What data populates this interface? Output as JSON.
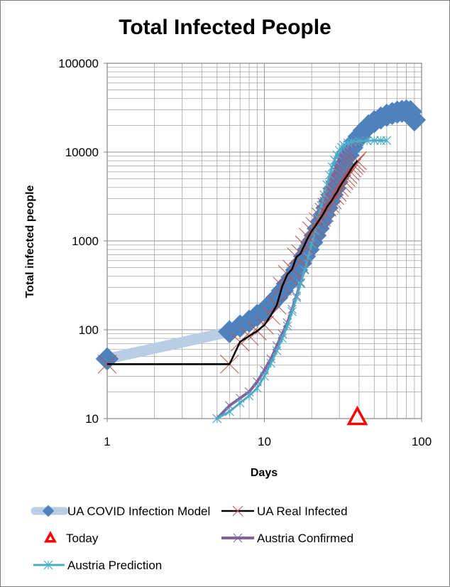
{
  "chart_data": {
    "type": "line",
    "title": "Total Infected People",
    "xlabel": "Days",
    "ylabel": "Total infected people",
    "xscale": "log",
    "yscale": "log",
    "xlim": [
      1,
      100
    ],
    "ylim": [
      10,
      100000
    ],
    "x_ticks": [
      "1",
      "10",
      "100"
    ],
    "y_ticks": [
      "10",
      "100",
      "1000",
      "10000",
      "100000"
    ],
    "grid": true,
    "legend_position": "bottom",
    "series": [
      {
        "name": "UA COVID Infection Model",
        "color": "#4f81bd",
        "line_color": "#b9cde5",
        "marker": "diamond",
        "points": [
          [
            1,
            47
          ],
          [
            6,
            95
          ],
          [
            7,
            110
          ],
          [
            8,
            125
          ],
          [
            9,
            145
          ],
          [
            10,
            165
          ],
          [
            11,
            195
          ],
          [
            12,
            230
          ],
          [
            13,
            275
          ],
          [
            14,
            330
          ],
          [
            15,
            390
          ],
          [
            16,
            470
          ],
          [
            17,
            560
          ],
          [
            18,
            670
          ],
          [
            19,
            800
          ],
          [
            20,
            960
          ],
          [
            21,
            1150
          ],
          [
            22,
            1380
          ],
          [
            23,
            1650
          ],
          [
            24,
            1970
          ],
          [
            25,
            2350
          ],
          [
            26,
            2800
          ],
          [
            27,
            3300
          ],
          [
            28,
            3900
          ],
          [
            29,
            4600
          ],
          [
            30,
            5400
          ],
          [
            32,
            7200
          ],
          [
            34,
            9200
          ],
          [
            36,
            11200
          ],
          [
            38,
            13200
          ],
          [
            40,
            15000
          ],
          [
            43,
            17500
          ],
          [
            46,
            19800
          ],
          [
            50,
            22000
          ],
          [
            55,
            24200
          ],
          [
            60,
            26000
          ],
          [
            65,
            27200
          ],
          [
            70,
            28200
          ],
          [
            75,
            28800
          ],
          [
            80,
            29100
          ],
          [
            85,
            28500
          ],
          [
            90,
            23000
          ]
        ]
      },
      {
        "name": "UA Real Infected",
        "color": "#000000",
        "marker_color": "#c0504d",
        "marker": "x",
        "points": [
          [
            1,
            41
          ],
          [
            6,
            41
          ],
          [
            7,
            73
          ],
          [
            8,
            85
          ],
          [
            9,
            97
          ],
          [
            10,
            113
          ],
          [
            11,
            145
          ],
          [
            12,
            190
          ],
          [
            13,
            310
          ],
          [
            14,
            420
          ],
          [
            15,
            480
          ],
          [
            16,
            660
          ],
          [
            17,
            720
          ],
          [
            18,
            900
          ],
          [
            19,
            1100
          ],
          [
            20,
            1300
          ],
          [
            21,
            1450
          ],
          [
            22,
            1650
          ],
          [
            23,
            1850
          ],
          [
            24,
            2100
          ],
          [
            25,
            2400
          ],
          [
            26,
            2650
          ],
          [
            27,
            2900
          ],
          [
            28,
            3250
          ],
          [
            29,
            3550
          ],
          [
            30,
            4000
          ],
          [
            31,
            4400
          ],
          [
            32,
            4800
          ],
          [
            33,
            5200
          ],
          [
            34,
            5600
          ],
          [
            35,
            6100
          ],
          [
            36,
            6600
          ],
          [
            37,
            7100
          ],
          [
            38,
            7500
          ],
          [
            39,
            8000
          ]
        ]
      },
      {
        "name": "Today",
        "color": "#ff0000",
        "marker": "triangle",
        "points": [
          [
            39,
            10
          ]
        ]
      },
      {
        "name": "Austria Confirmed",
        "color": "#8064a2",
        "marker": "x",
        "points": [
          [
            5,
            10
          ],
          [
            6,
            14
          ],
          [
            7,
            17
          ],
          [
            8,
            20
          ],
          [
            9,
            26
          ],
          [
            10,
            35
          ],
          [
            11,
            47
          ],
          [
            12,
            66
          ],
          [
            13,
            90
          ],
          [
            14,
            120
          ],
          [
            15,
            170
          ],
          [
            16,
            240
          ],
          [
            17,
            340
          ],
          [
            18,
            480
          ],
          [
            19,
            680
          ],
          [
            20,
            950
          ],
          [
            21,
            1300
          ],
          [
            22,
            1700
          ],
          [
            23,
            2200
          ],
          [
            24,
            2800
          ],
          [
            25,
            3500
          ],
          [
            26,
            4300
          ],
          [
            27,
            5200
          ],
          [
            28,
            6200
          ],
          [
            29,
            7200
          ],
          [
            30,
            8300
          ],
          [
            31,
            9200
          ],
          [
            32,
            10000
          ],
          [
            34,
            11200
          ],
          [
            36,
            12000
          ],
          [
            38,
            12600
          ],
          [
            40,
            13000
          ]
        ]
      },
      {
        "name": "Austria Prediction",
        "color": "#4bacc6",
        "marker": "asterisk",
        "points": [
          [
            5,
            10
          ],
          [
            6,
            12
          ],
          [
            7,
            15
          ],
          [
            8,
            18
          ],
          [
            9,
            22
          ],
          [
            10,
            30
          ],
          [
            11,
            42
          ],
          [
            12,
            58
          ],
          [
            13,
            80
          ],
          [
            14,
            110
          ],
          [
            15,
            160
          ],
          [
            16,
            230
          ],
          [
            17,
            330
          ],
          [
            18,
            470
          ],
          [
            19,
            660
          ],
          [
            20,
            930
          ],
          [
            21,
            1300
          ],
          [
            22,
            1800
          ],
          [
            23,
            2500
          ],
          [
            24,
            3300
          ],
          [
            25,
            4300
          ],
          [
            26,
            5500
          ],
          [
            27,
            6800
          ],
          [
            28,
            8100
          ],
          [
            29,
            9300
          ],
          [
            30,
            10400
          ],
          [
            31,
            11300
          ],
          [
            32,
            12000
          ],
          [
            34,
            12600
          ],
          [
            36,
            13000
          ],
          [
            40,
            13300
          ],
          [
            45,
            13400
          ],
          [
            50,
            13500
          ],
          [
            55,
            13500
          ],
          [
            60,
            13500
          ]
        ]
      }
    ]
  }
}
